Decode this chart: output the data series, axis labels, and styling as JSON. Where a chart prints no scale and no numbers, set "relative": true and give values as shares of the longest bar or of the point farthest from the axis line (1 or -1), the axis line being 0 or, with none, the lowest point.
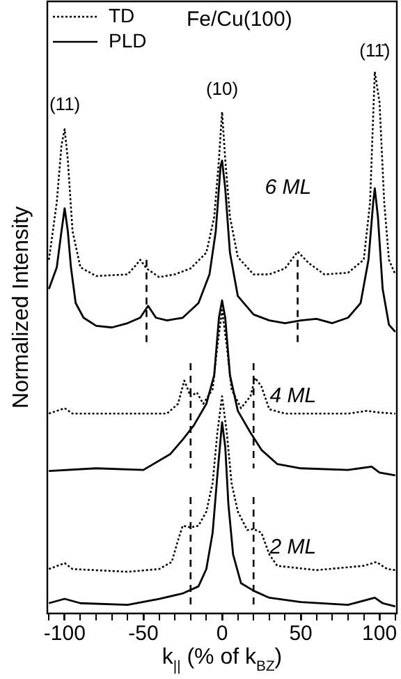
{
  "chart_data": {
    "type": "line",
    "title": "Fe/Cu(100)",
    "xlabel": "k$_{||}$ (% of k$_{BZ}$)",
    "ylabel": "Normalized Intensity",
    "relative": true,
    "xlim": [
      -111,
      111
    ],
    "xticks": [
      {
        "value": -110,
        "label": null
      },
      -100,
      {
        "value": -90,
        "label": null
      },
      {
        "value": -80,
        "label": null
      },
      {
        "value": -70,
        "label": null
      },
      {
        "value": -60,
        "label": null
      },
      -50,
      {
        "value": -40,
        "label": null
      },
      {
        "value": -30,
        "label": null
      },
      {
        "value": -20,
        "label": null
      },
      {
        "value": -10,
        "label": null
      },
      0,
      {
        "value": 10,
        "label": null
      },
      {
        "value": 20,
        "label": null
      },
      {
        "value": 30,
        "label": null
      },
      {
        "value": 40,
        "label": null
      },
      50,
      {
        "value": 60,
        "label": null
      },
      {
        "value": 70,
        "label": null
      },
      {
        "value": 80,
        "label": null
      },
      {
        "value": 90,
        "label": null
      },
      100,
      {
        "value": 110,
        "label": null
      }
    ],
    "grid": false,
    "legend": "top left",
    "marker": "none",
    "series": [
      {
        "name": "TD",
        "color": "#000000",
        "line_style": "dotted",
        "x": [
          -110,
          -105,
          -102,
          -100,
          -98,
          -95,
          -90,
          -80,
          -60,
          -55,
          -52,
          -48,
          -40,
          -30,
          -20,
          -10,
          -5,
          -2,
          0,
          2,
          5,
          10,
          20,
          30,
          40,
          48,
          55,
          65,
          80,
          90,
          94,
          97,
          100,
          103,
          106,
          110
        ],
        "values": [
          0.653,
          0.759,
          0.865,
          0.894,
          0.838,
          0.706,
          0.639,
          0.623,
          0.626,
          0.642,
          0.653,
          0.637,
          0.621,
          0.626,
          0.637,
          0.666,
          0.732,
          0.838,
          0.926,
          0.838,
          0.732,
          0.658,
          0.626,
          0.626,
          0.637,
          0.668,
          0.647,
          0.626,
          0.629,
          0.653,
          0.759,
          1,
          0.944,
          0.759,
          0.653,
          0.626
        ]
      },
      {
        "name": "PLD",
        "color": "#000000",
        "line_style": "solid",
        "x": [
          -110,
          -105,
          -102,
          -100,
          -98,
          -96,
          -93,
          -88,
          -80,
          -70,
          -60,
          -52,
          -47,
          -42,
          -35,
          -25,
          -15,
          -8,
          -4,
          -1,
          0,
          2,
          5,
          10,
          20,
          30,
          40,
          50,
          60,
          70,
          80,
          88,
          93,
          96,
          97,
          99,
          102,
          106,
          110
        ],
        "values": [
          0.599,
          0.639,
          0.706,
          0.748,
          0.706,
          0.639,
          0.573,
          0.546,
          0.531,
          0.528,
          0.536,
          0.546,
          0.568,
          0.546,
          0.541,
          0.546,
          0.573,
          0.626,
          0.706,
          0.825,
          0.836,
          0.785,
          0.666,
          0.586,
          0.552,
          0.541,
          0.536,
          0.541,
          0.544,
          0.536,
          0.546,
          0.573,
          0.653,
          0.759,
          0.785,
          0.732,
          0.599,
          0.533,
          0.52
        ]
      },
      {
        "color": "#000000",
        "line_style": "dotted",
        "x": [
          -110,
          -100,
          -95,
          -60,
          -35,
          -28,
          -24,
          -20,
          -16,
          -12,
          -6,
          -3,
          0,
          3,
          6,
          12,
          18,
          21,
          25,
          30,
          40,
          80,
          92,
          100,
          110
        ],
        "values": [
          0.369,
          0.379,
          0.369,
          0.369,
          0.369,
          0.387,
          0.43,
          0.401,
          0.408,
          0.387,
          0.414,
          0.493,
          0.56,
          0.493,
          0.414,
          0.379,
          0.401,
          0.435,
          0.419,
          0.377,
          0.369,
          0.369,
          0.374,
          0.371,
          0.369
        ]
      },
      {
        "color": "#000000",
        "line_style": "solid",
        "x": [
          -110,
          -80,
          -50,
          -33,
          -25,
          -18,
          -10,
          -5,
          -2,
          0,
          2,
          5,
          10,
          18,
          25,
          35,
          50,
          80,
          95,
          100,
          110
        ],
        "values": [
          0.263,
          0.268,
          0.265,
          0.294,
          0.321,
          0.347,
          0.387,
          0.44,
          0.546,
          0.578,
          0.546,
          0.44,
          0.374,
          0.334,
          0.302,
          0.276,
          0.268,
          0.265,
          0.271,
          0.26,
          0.255
        ]
      },
      {
        "color": "#000000",
        "line_style": "dotted",
        "x": [
          -110,
          -100,
          -95,
          -60,
          -40,
          -32,
          -28,
          -25,
          -20,
          -15,
          -10,
          -6,
          -3,
          0,
          3,
          6,
          10,
          16,
          20,
          25,
          30,
          35,
          60,
          90,
          98,
          105,
          110
        ],
        "values": [
          0.082,
          0.093,
          0.082,
          0.077,
          0.082,
          0.095,
          0.135,
          0.162,
          0.159,
          0.162,
          0.188,
          0.241,
          0.334,
          0.401,
          0.334,
          0.241,
          0.188,
          0.154,
          0.156,
          0.149,
          0.109,
          0.088,
          0.08,
          0.088,
          0.095,
          0.082,
          0.08
        ]
      },
      {
        "color": "#000000",
        "line_style": "solid",
        "x": [
          -110,
          -100,
          -90,
          -60,
          -40,
          -25,
          -15,
          -10,
          -6,
          -3,
          0,
          2,
          4,
          7,
          12,
          20,
          30,
          50,
          80,
          97,
          102,
          110
        ],
        "values": [
          0.019,
          0.027,
          0.019,
          0.016,
          0.027,
          0.037,
          0.05,
          0.082,
          0.149,
          0.255,
          0.353,
          0.308,
          0.202,
          0.109,
          0.056,
          0.042,
          0.029,
          0.021,
          0.016,
          0.029,
          0.019,
          0.013
        ]
      },
      {
        "color": "#000000",
        "line_style": "dashed",
        "x": [
          -48,
          -48
        ],
        "values": [
          0.653,
          0.493
        ]
      },
      {
        "color": "#000000",
        "line_style": "dashed",
        "x": [
          48,
          48
        ],
        "values": [
          0.653,
          0.493
        ]
      },
      {
        "color": "#000000",
        "line_style": "dashed",
        "x": [
          -20,
          -20
        ],
        "values": [
          0.462,
          0.268
        ]
      },
      {
        "color": "#000000",
        "line_style": "dashed",
        "x": [
          20,
          20
        ],
        "values": [
          0.462,
          0.268
        ]
      },
      {
        "color": "#000000",
        "line_style": "dashed",
        "x": [
          -20,
          -20
        ],
        "values": [
          0.215,
          0.011
        ]
      },
      {
        "color": "#000000",
        "line_style": "dashed",
        "x": [
          20,
          20
        ],
        "values": [
          0.215,
          0.011
        ]
      }
    ],
    "annotations": [
      "(11)",
      "(10)",
      "(11̄)",
      "6 ML",
      "4 ML",
      "2 ML"
    ]
  }
}
